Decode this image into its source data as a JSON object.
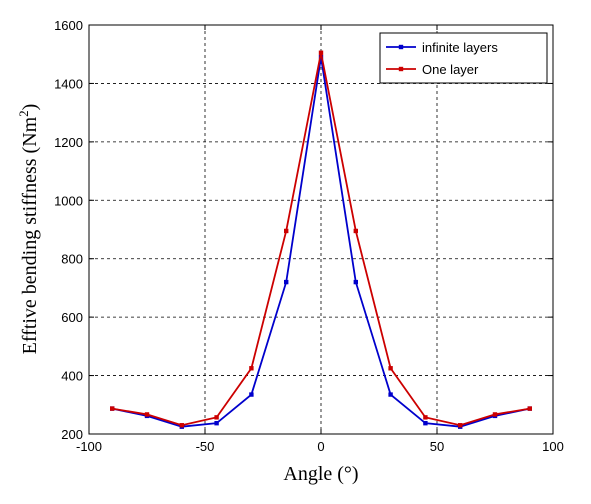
{
  "chart_data": {
    "type": "line",
    "xlabel": "Angle (°)",
    "ylabel": "Efftive bending stiffness (Nm",
    "ylabel_sup": "2",
    "ylabel_close": ")",
    "xlim": [
      -100,
      100
    ],
    "ylim": [
      200,
      1600
    ],
    "xticks": [
      "-100",
      "-50",
      "0",
      "50",
      "100"
    ],
    "yticks": [
      "200",
      "400",
      "600",
      "800",
      "1000",
      "1200",
      "1400",
      "1600"
    ],
    "grid": true,
    "legend_position": "top-right",
    "x": [
      -90,
      -75,
      -60,
      -45,
      -30,
      -15,
      0,
      15,
      30,
      45,
      60,
      75,
      90
    ],
    "series": [
      {
        "name": "infinite layers",
        "color": "#0000cc",
        "marker": "square",
        "values": [
          287,
          262,
          225,
          237,
          335,
          720,
          1490,
          720,
          335,
          237,
          225,
          262,
          287
        ]
      },
      {
        "name": "One layer",
        "color": "#cc0000",
        "marker": "square",
        "values": [
          287,
          267,
          230,
          257,
          425,
          895,
          1505,
          895,
          425,
          257,
          230,
          267,
          287
        ]
      }
    ]
  }
}
